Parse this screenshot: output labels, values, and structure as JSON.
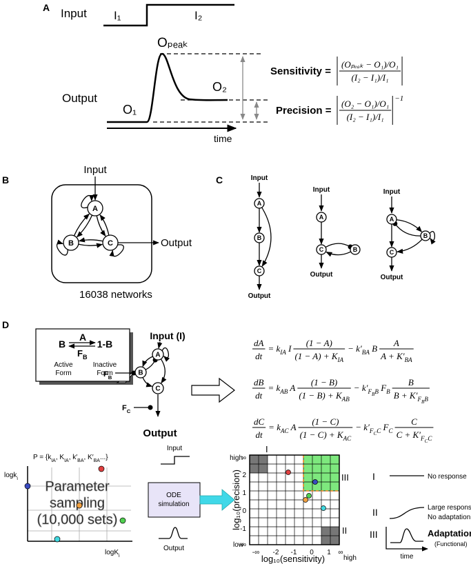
{
  "panel_a": {
    "label": "A",
    "input": "Input",
    "i1": "I₁",
    "i2": "I₂",
    "o_peak": "Oₚₑₐₖ",
    "output": "Output",
    "o1": "O₁",
    "o2": "O₂",
    "time": "time",
    "sensitivity": {
      "label": "Sensitivity =",
      "numerator": "(Oₚₑₐₖ − O₁)/O₁",
      "denominator": "(I₂ − I₁)/I₁"
    },
    "precision": {
      "label": "Precision =",
      "numerator": "(O₂ − O₁)/O₁",
      "denominator": "(I₂ − I₁)/I₁",
      "exponent": "−1"
    }
  },
  "panel_b": {
    "label": "B",
    "input": "Input",
    "nodes": [
      "A",
      "B",
      "C"
    ],
    "output": "Output",
    "caption": "16038 networks"
  },
  "panel_c": {
    "label": "C",
    "networks": [
      {
        "input": "Input",
        "nodes": [
          "A",
          "B",
          "C"
        ],
        "output": "Output"
      },
      {
        "input": "Input",
        "nodes": [
          "A",
          "C",
          "B"
        ],
        "output": "Output"
      },
      {
        "input": "Input",
        "nodes": [
          "A",
          "B",
          "C"
        ],
        "output": "Output"
      }
    ]
  },
  "panel_d": {
    "label": "D",
    "inset": {
      "a": "A",
      "b": "B",
      "one_minus_b": "1-B",
      "fb": [
        "F",
        {
          "sub": "B"
        }
      ],
      "active": [
        "Active",
        "Form"
      ],
      "inactive": [
        "Inactive",
        "Form"
      ]
    },
    "network": {
      "input": "Input (I)",
      "nodes": [
        "A",
        "B",
        "C"
      ],
      "fb": [
        "F",
        {
          "sub": "B"
        }
      ],
      "fc": [
        "F",
        {
          "sub": "C"
        }
      ],
      "output": "Output"
    },
    "equations": [
      [
        {
          "num": [
            "dA"
          ],
          "den": [
            "dt"
          ]
        },
        {
          "run": [
            "= k",
            {
              "sub": "IA"
            },
            " I"
          ]
        },
        {
          "num": [
            "(1 − A)"
          ],
          "den": [
            "(1 − A) + K",
            {
              "sub": "IA"
            }
          ]
        },
        {
          "run": [
            "− k′",
            {
              "sub": "BA"
            },
            " B"
          ]
        },
        {
          "num": [
            "A"
          ],
          "den": [
            "A + K′",
            {
              "sub": "BA"
            }
          ]
        }
      ],
      [
        {
          "num": [
            "dB"
          ],
          "den": [
            "dt"
          ]
        },
        {
          "run": [
            "= k",
            {
              "sub": "AB"
            },
            " A"
          ]
        },
        {
          "num": [
            "(1 − B)"
          ],
          "den": [
            "(1 − B) + K",
            {
              "sub": "AB"
            }
          ]
        },
        {
          "run": [
            "− k′",
            {
              "sub": "F"
            },
            {
              "subsub": "B"
            },
            {
              "sub": "B"
            },
            " F",
            {
              "sub": "B"
            }
          ]
        },
        {
          "num": [
            "B"
          ],
          "den": [
            "B + K′",
            {
              "sub": "F"
            },
            {
              "subsub": "B"
            },
            {
              "sub": "B"
            }
          ]
        }
      ],
      [
        {
          "num": [
            "dC"
          ],
          "den": [
            "dt"
          ]
        },
        {
          "run": [
            "= k",
            {
              "sub": "AC"
            },
            " A"
          ]
        },
        {
          "num": [
            "(1 − C)"
          ],
          "den": [
            "(1 − C) + K",
            {
              "sub": "AC"
            }
          ]
        },
        {
          "run": [
            "− k′",
            {
              "sub": "F"
            },
            {
              "subsub": "C"
            },
            {
              "sub": "C"
            },
            " F",
            {
              "sub": "C"
            }
          ]
        },
        {
          "num": [
            "C"
          ],
          "den": [
            "C + K′",
            {
              "sub": "F"
            },
            {
              "subsub": "C"
            },
            {
              "sub": "C"
            }
          ]
        }
      ]
    ],
    "sampling": {
      "set": [
        "P = {k",
        {
          "sub": "IA"
        },
        ", K",
        {
          "sub": "IA"
        },
        ", k′",
        {
          "sub": "BA"
        },
        ", K′",
        {
          "sub": "BA"
        },
        "...}"
      ],
      "y_axis": [
        "logk",
        {
          "sub": "i"
        }
      ],
      "x_axis": [
        "logK",
        {
          "sub": "i"
        }
      ],
      "watermark": [
        "Parameter",
        "sampling",
        "(10,000 sets)"
      ]
    },
    "simulation": {
      "input": "Input",
      "box": [
        "ODE",
        "simulation"
      ],
      "output": "Output"
    },
    "map": {
      "y_axis": "log₁₀(precision)",
      "x_axis": "log₁₀(sensitivity)",
      "y_high": "high",
      "corner_low": "low",
      "x_high": "high",
      "yticks": [
        "∞",
        "2",
        "1",
        "0",
        "-1",
        "-∞"
      ],
      "xticks": [
        "-∞",
        "-2",
        "-1",
        "0",
        "1",
        "∞"
      ],
      "regions": [
        "I",
        "III",
        "II"
      ]
    },
    "legend": [
      {
        "label": "I",
        "text": [
          "No response"
        ]
      },
      {
        "label": "II",
        "text": [
          "Large response",
          "No adaptation"
        ]
      },
      {
        "label": "III",
        "text": [
          "Adaptation",
          "(Functional)"
        ]
      }
    ],
    "legend_time": "time"
  }
}
